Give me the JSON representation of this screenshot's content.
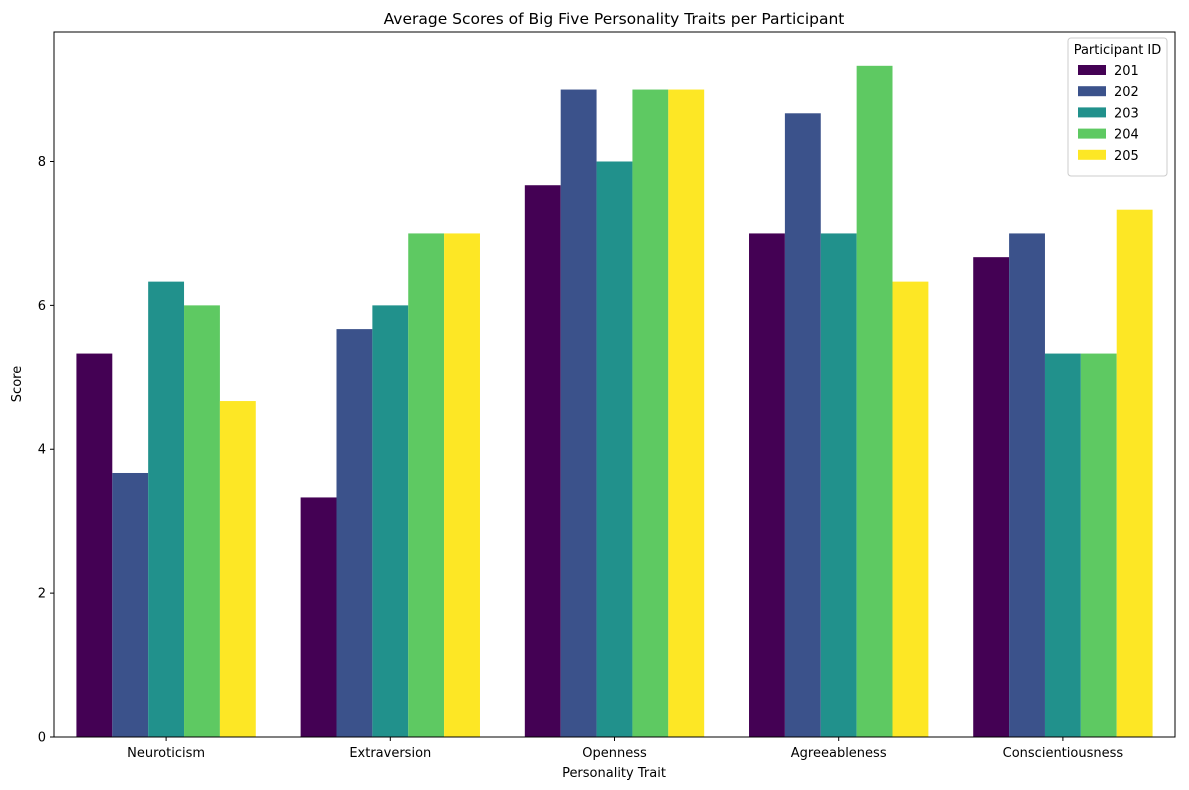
{
  "chart_data": {
    "type": "bar",
    "title": "Average Scores of Big Five Personality Traits per Participant",
    "xlabel": "Personality Trait",
    "ylabel": "Score",
    "ylim": [
      0,
      9.8
    ],
    "yticks": [
      0,
      2,
      4,
      6,
      8
    ],
    "grid": false,
    "legend": {
      "title": "Participant ID",
      "placement": "top-right"
    },
    "categories": [
      "Neuroticism",
      "Extraversion",
      "Openness",
      "Agreeableness",
      "Conscientiousness"
    ],
    "series": [
      {
        "name": "201",
        "color": "#440154",
        "values": [
          5.33,
          3.33,
          7.67,
          7.0,
          6.67
        ]
      },
      {
        "name": "202",
        "color": "#3b528b",
        "values": [
          3.67,
          5.67,
          9.0,
          8.67,
          7.0
        ]
      },
      {
        "name": "203",
        "color": "#21918c",
        "values": [
          6.33,
          6.0,
          8.0,
          7.0,
          5.33
        ]
      },
      {
        "name": "204",
        "color": "#5ec962",
        "values": [
          6.0,
          7.0,
          9.0,
          9.33,
          5.33
        ]
      },
      {
        "name": "205",
        "color": "#fde725",
        "values": [
          4.67,
          7.0,
          9.0,
          6.33,
          7.33
        ]
      }
    ]
  }
}
